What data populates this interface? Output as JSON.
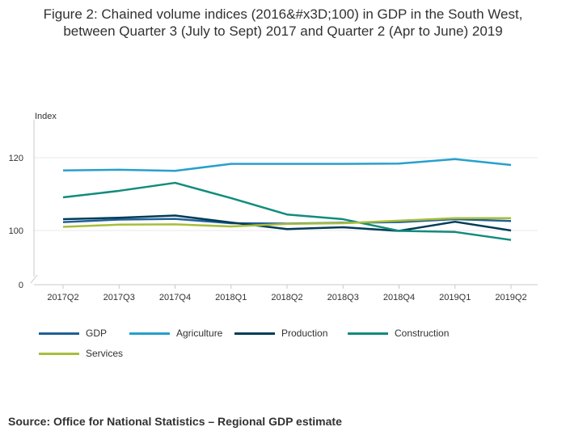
{
  "title": "Figure 2: Chained volume indices (2016&#x3D;100) in GDP in the South West, between Quarter 3 (July to Sept) 2017 and Quarter 2 (Apr to June) 2019",
  "source": "Source: Office for National Statistics – Regional GDP estimate",
  "chart_data": {
    "type": "line",
    "title": "Figure 2: Chained volume indices (2016&#x3D;100) in GDP in the South West, between Quarter 3 (July to Sept) 2017 and Quarter 2 (Apr to June) 2019",
    "ylabel": "Index",
    "xlabel": "",
    "categories": [
      "2017Q2",
      "2017Q3",
      "2017Q4",
      "2018Q1",
      "2018Q2",
      "2018Q3",
      "2018Q4",
      "2019Q1",
      "2019Q2"
    ],
    "yticks": [
      "0",
      "100",
      "120"
    ],
    "axis_break": true,
    "legend_position": "bottom",
    "series": [
      {
        "name": "GDP",
        "color": "#206095",
        "values": [
          102.3,
          103.0,
          103.2,
          102.0,
          101.9,
          102.1,
          102.3,
          103.1,
          102.6
        ]
      },
      {
        "name": "Agriculture",
        "color": "#27a0cc",
        "values": [
          116.5,
          116.7,
          116.4,
          118.3,
          118.3,
          118.3,
          118.4,
          119.6,
          118.0
        ]
      },
      {
        "name": "Production",
        "color": "#003c57",
        "values": [
          103.1,
          103.5,
          104.1,
          102.2,
          100.4,
          100.9,
          99.9,
          102.4,
          100.0
        ]
      },
      {
        "name": "Construction",
        "color": "#118c7b",
        "values": [
          109.1,
          110.9,
          113.1,
          108.9,
          104.4,
          103.1,
          99.9,
          99.6,
          97.4
        ]
      },
      {
        "name": "Services",
        "color": "#a8bd3a",
        "values": [
          101.0,
          101.6,
          101.7,
          101.1,
          101.8,
          102.0,
          102.7,
          103.4,
          103.4
        ]
      }
    ]
  }
}
